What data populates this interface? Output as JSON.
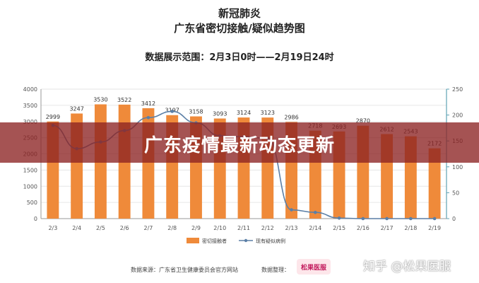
{
  "header": {
    "title_line1": "新冠肺炎",
    "title_line2": "广东省密切接触/疑似趋势图",
    "range_label": "数据展示范围：2月3日0时——2月19日24时"
  },
  "banner": {
    "text": "广东疫情最新动态更新"
  },
  "footer": {
    "source": "数据来源：广东省卫生健康委员会官方网站",
    "organizer": "数据整理：",
    "logo_text": "松果医服"
  },
  "watermark": "知乎 @松果医服",
  "colors": {
    "bar": "#ef8a3a",
    "line": "#5b7fa6",
    "axis_left": "#9a9a9a",
    "axis_right": "#5fa3b5"
  },
  "chart_data": {
    "type": "bar",
    "categories": [
      "2/3",
      "2/4",
      "2/5",
      "2/6",
      "2/7",
      "2/8",
      "2/9",
      "2/10",
      "2/11",
      "2/12",
      "2/13",
      "2/14",
      "2/15",
      "2/16",
      "2/17",
      "2/18",
      "2/19"
    ],
    "series": [
      {
        "name": "密切接触者",
        "type": "bar",
        "axis": "left",
        "values": [
          2999,
          3247,
          3530,
          3522,
          3412,
          3197,
          3158,
          3093,
          3124,
          3123,
          2986,
          2718,
          2693,
          2870,
          2612,
          2543,
          2172
        ]
      },
      {
        "name": "现有疑似病例",
        "type": "line",
        "axis": "right",
        "values": [
          180,
          135,
          148,
          170,
          195,
          207,
          185,
          160,
          158,
          155,
          17,
          12,
          1,
          0,
          0,
          0,
          0
        ]
      }
    ],
    "y_left": {
      "lim": [
        0,
        4000
      ],
      "ticks": [
        0,
        500,
        1000,
        1500,
        2000,
        2500,
        3000,
        3500,
        4000
      ]
    },
    "y_right": {
      "lim": [
        0,
        250
      ],
      "ticks": [
        0,
        50,
        100,
        150,
        200,
        250
      ]
    },
    "data_labels": true,
    "legend": "bottom"
  }
}
